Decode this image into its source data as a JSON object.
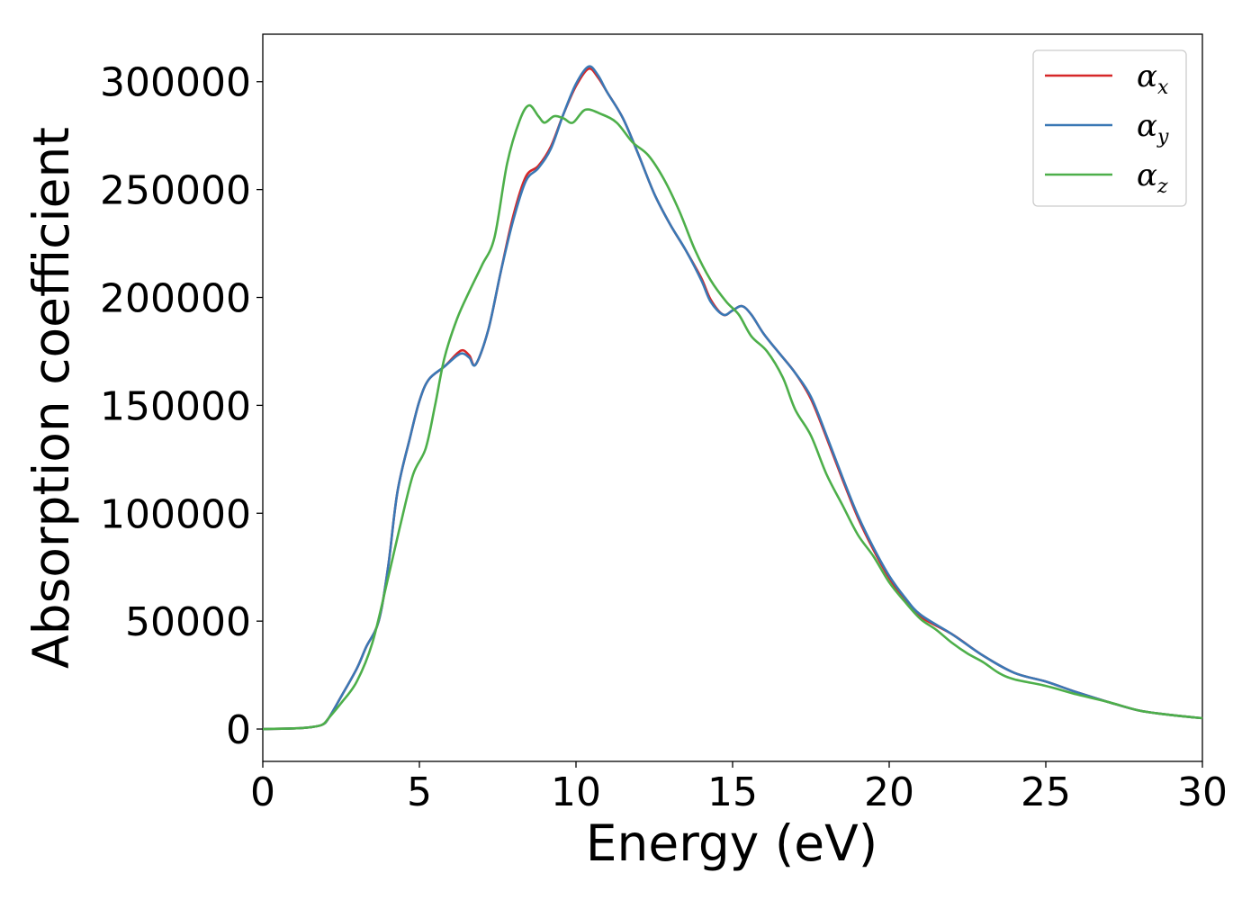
{
  "chart_data": {
    "type": "line",
    "title": "",
    "xlabel": "Energy (eV)",
    "ylabel": "Absorption coefficient",
    "xlim": [
      0,
      30
    ],
    "ylim": [
      -15000,
      322000
    ],
    "x_ticks": [
      0,
      5,
      10,
      15,
      20,
      25,
      30
    ],
    "y_ticks": [
      0,
      50000,
      100000,
      150000,
      200000,
      250000,
      300000
    ],
    "grid": false,
    "legend_position": "top-right",
    "series": [
      {
        "name": "α_x",
        "legend_symbol": "α",
        "legend_subscript": "x",
        "color": "#d62728",
        "points": [
          [
            0,
            0
          ],
          [
            1,
            300
          ],
          [
            1.5,
            800
          ],
          [
            1.9,
            2000
          ],
          [
            2.1,
            5000
          ],
          [
            2.5,
            15000
          ],
          [
            3,
            28000
          ],
          [
            3.3,
            38000
          ],
          [
            3.7,
            50000
          ],
          [
            4,
            75000
          ],
          [
            4.3,
            110000
          ],
          [
            4.7,
            135000
          ],
          [
            5,
            152000
          ],
          [
            5.3,
            162000
          ],
          [
            5.8,
            168000
          ],
          [
            6.2,
            174000
          ],
          [
            6.4,
            175500
          ],
          [
            6.6,
            173000
          ],
          [
            6.8,
            169000
          ],
          [
            7.2,
            185000
          ],
          [
            7.6,
            212000
          ],
          [
            8,
            238000
          ],
          [
            8.4,
            256000
          ],
          [
            8.8,
            261000
          ],
          [
            9.2,
            270000
          ],
          [
            9.6,
            285000
          ],
          [
            10,
            298000
          ],
          [
            10.4,
            306000
          ],
          [
            10.7,
            302000
          ],
          [
            11,
            295000
          ],
          [
            11.5,
            283000
          ],
          [
            12,
            266000
          ],
          [
            12.5,
            248000
          ],
          [
            13,
            234000
          ],
          [
            13.5,
            222000
          ],
          [
            14,
            209000
          ],
          [
            14.3,
            199000
          ],
          [
            14.7,
            192000
          ],
          [
            15,
            194000
          ],
          [
            15.3,
            196000
          ],
          [
            15.6,
            192000
          ],
          [
            16,
            183000
          ],
          [
            16.5,
            174000
          ],
          [
            17,
            165000
          ],
          [
            17.5,
            153000
          ],
          [
            18,
            135000
          ],
          [
            18.5,
            116000
          ],
          [
            19,
            98000
          ],
          [
            19.5,
            83000
          ],
          [
            20,
            70000
          ],
          [
            20.5,
            60000
          ],
          [
            21,
            52000
          ],
          [
            22,
            44000
          ],
          [
            23,
            34000
          ],
          [
            24,
            26000
          ],
          [
            25,
            22000
          ],
          [
            26,
            17000
          ],
          [
            27,
            12500
          ],
          [
            28,
            8500
          ],
          [
            29,
            6500
          ],
          [
            30,
            5000
          ]
        ]
      },
      {
        "name": "α_y",
        "legend_symbol": "α",
        "legend_subscript": "y",
        "color": "#3a78b5",
        "points": [
          [
            0,
            0
          ],
          [
            1,
            300
          ],
          [
            1.5,
            800
          ],
          [
            1.9,
            2000
          ],
          [
            2.1,
            5000
          ],
          [
            2.5,
            15000
          ],
          [
            3,
            28000
          ],
          [
            3.3,
            38000
          ],
          [
            3.7,
            50000
          ],
          [
            4,
            75000
          ],
          [
            4.3,
            110000
          ],
          [
            4.7,
            135000
          ],
          [
            5,
            152000
          ],
          [
            5.3,
            162000
          ],
          [
            5.8,
            168000
          ],
          [
            6.2,
            173000
          ],
          [
            6.4,
            174000
          ],
          [
            6.6,
            172000
          ],
          [
            6.8,
            169000
          ],
          [
            7.2,
            185000
          ],
          [
            7.6,
            212000
          ],
          [
            8,
            236000
          ],
          [
            8.4,
            254000
          ],
          [
            8.8,
            260000
          ],
          [
            9.2,
            269000
          ],
          [
            9.6,
            285000
          ],
          [
            10,
            299000
          ],
          [
            10.4,
            307000
          ],
          [
            10.7,
            303000
          ],
          [
            11,
            295000
          ],
          [
            11.5,
            283000
          ],
          [
            12,
            266000
          ],
          [
            12.5,
            248000
          ],
          [
            13,
            234000
          ],
          [
            13.5,
            222000
          ],
          [
            14,
            208000
          ],
          [
            14.3,
            198000
          ],
          [
            14.7,
            192000
          ],
          [
            15,
            194000
          ],
          [
            15.3,
            196000
          ],
          [
            15.6,
            192000
          ],
          [
            16,
            183000
          ],
          [
            16.5,
            174000
          ],
          [
            17,
            165000
          ],
          [
            17.5,
            154000
          ],
          [
            18,
            136000
          ],
          [
            18.5,
            117000
          ],
          [
            19,
            99000
          ],
          [
            19.5,
            84000
          ],
          [
            20,
            71000
          ],
          [
            20.5,
            61000
          ],
          [
            21,
            53000
          ],
          [
            22,
            44000
          ],
          [
            23,
            34000
          ],
          [
            24,
            26000
          ],
          [
            25,
            22000
          ],
          [
            26,
            17000
          ],
          [
            27,
            12500
          ],
          [
            28,
            8500
          ],
          [
            29,
            6500
          ],
          [
            30,
            5000
          ]
        ]
      },
      {
        "name": "α_z",
        "legend_symbol": "α",
        "legend_subscript": "z",
        "color": "#4daf4a",
        "points": [
          [
            0,
            0
          ],
          [
            1,
            300
          ],
          [
            1.5,
            800
          ],
          [
            1.9,
            2000
          ],
          [
            2.1,
            5000
          ],
          [
            2.5,
            12000
          ],
          [
            3,
            22000
          ],
          [
            3.5,
            40000
          ],
          [
            4,
            70000
          ],
          [
            4.4,
            95000
          ],
          [
            4.8,
            118000
          ],
          [
            5.2,
            130000
          ],
          [
            5.5,
            150000
          ],
          [
            5.8,
            172000
          ],
          [
            6.2,
            190000
          ],
          [
            6.6,
            203000
          ],
          [
            7,
            215000
          ],
          [
            7.4,
            228000
          ],
          [
            7.8,
            262000
          ],
          [
            8.2,
            282000
          ],
          [
            8.5,
            289000
          ],
          [
            8.8,
            284000
          ],
          [
            9,
            281000
          ],
          [
            9.3,
            284000
          ],
          [
            9.6,
            283000
          ],
          [
            9.9,
            281000
          ],
          [
            10.3,
            287000
          ],
          [
            10.8,
            285000
          ],
          [
            11.3,
            281000
          ],
          [
            11.8,
            272000
          ],
          [
            12.3,
            266000
          ],
          [
            12.8,
            255000
          ],
          [
            13.3,
            240000
          ],
          [
            13.8,
            222000
          ],
          [
            14.3,
            208000
          ],
          [
            14.8,
            198000
          ],
          [
            15.2,
            192000
          ],
          [
            15.6,
            182000
          ],
          [
            16.1,
            175000
          ],
          [
            16.6,
            163000
          ],
          [
            17,
            148000
          ],
          [
            17.5,
            136000
          ],
          [
            18,
            118000
          ],
          [
            18.5,
            104000
          ],
          [
            19,
            90000
          ],
          [
            19.5,
            80000
          ],
          [
            20,
            68000
          ],
          [
            20.5,
            59000
          ],
          [
            21,
            51000
          ],
          [
            21.5,
            46000
          ],
          [
            22,
            40000
          ],
          [
            22.5,
            35000
          ],
          [
            23,
            31000
          ],
          [
            23.5,
            26000
          ],
          [
            24,
            23000
          ],
          [
            25,
            20000
          ],
          [
            26,
            16000
          ],
          [
            27,
            12500
          ],
          [
            28,
            8500
          ],
          [
            29,
            6500
          ],
          [
            30,
            5000
          ]
        ]
      }
    ]
  }
}
